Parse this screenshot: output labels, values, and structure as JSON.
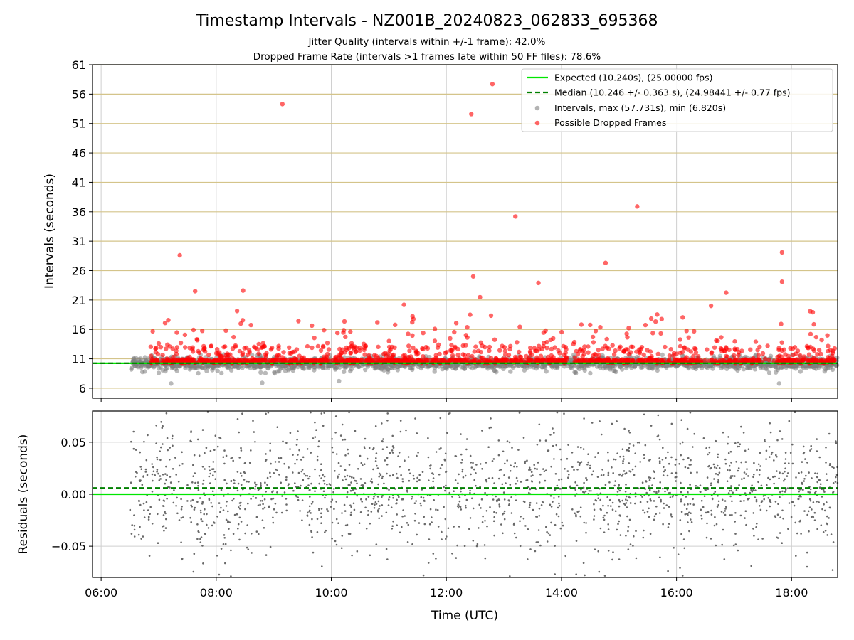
{
  "chart_data": [
    {
      "type": "scatter",
      "title": "Timestamp Intervals - NZ001B_20240823_062833_695368",
      "subtitle_1": "Jitter Quality (intervals within +/-1 frame): 42.0%",
      "subtitle_2": "Dropped Frame Rate (intervals >1 frames late within 50 FF files): 78.6%",
      "xlabel": "",
      "ylabel": "Intervals (seconds)",
      "x_ticks": [
        "06:00",
        "08:00",
        "10:00",
        "12:00",
        "14:00",
        "16:00",
        "18:00"
      ],
      "y_ticks": [
        6,
        11,
        16,
        21,
        26,
        31,
        36,
        41,
        46,
        51,
        56,
        61
      ],
      "xlim_hours": [
        5.85,
        18.8
      ],
      "ylim": [
        4.3,
        61
      ],
      "expected_interval": 10.24,
      "median_interval": 10.246,
      "legend_position": "top-right",
      "legend": [
        "Expected (10.240s), (25.00000 fps)",
        "Median (10.246 +/- 0.363 s), (24.98441 +/- 0.77 fps)",
        "Intervals, max (57.731s), min (6.820s)",
        "Possible Dropped Frames"
      ],
      "colors": {
        "expected": "#00e600",
        "median": "#008000",
        "intervals": "#808080",
        "dropped": "#ff0000",
        "gridline": "#d4c48a"
      },
      "notable_dropped_points": [
        {
          "time": "07:22",
          "value": 28.6
        },
        {
          "time": "09:09",
          "value": 54.3
        },
        {
          "time": "12:26",
          "value": 52.6
        },
        {
          "time": "12:48",
          "value": 57.7
        },
        {
          "time": "13:12",
          "value": 35.2
        },
        {
          "time": "15:19",
          "value": 36.9
        },
        {
          "time": "17:50",
          "value": 29.1
        },
        {
          "time": "17:50",
          "value": 24.1
        },
        {
          "time": "14:46",
          "value": 27.3
        },
        {
          "time": "12:28",
          "value": 25.0
        },
        {
          "time": "13:36",
          "value": 23.9
        },
        {
          "time": "08:28",
          "value": 22.6
        },
        {
          "time": "07:38",
          "value": 22.5
        },
        {
          "time": "16:36",
          "value": 20.0
        }
      ],
      "notable_interval_points": [
        {
          "time": "07:13",
          "value": 6.8
        },
        {
          "time": "08:48",
          "value": 6.9
        },
        {
          "time": "17:47",
          "value": 6.8
        },
        {
          "time": "10:08",
          "value": 7.2
        }
      ]
    },
    {
      "type": "scatter",
      "xlabel": "Time (UTC)",
      "ylabel": "Residuals (seconds)",
      "x_ticks": [
        "06:00",
        "08:00",
        "10:00",
        "12:00",
        "14:00",
        "16:00",
        "18:00"
      ],
      "y_ticks": [
        "0.05",
        "0.00",
        "−0.05"
      ],
      "y_tick_values": [
        0.05,
        0.0,
        -0.05
      ],
      "ylim": [
        -0.08,
        0.08
      ],
      "expected_residual": 0.0,
      "median_residual": 0.006,
      "colors": {
        "expected": "#00e600",
        "median": "#008000",
        "residuals": "#696969"
      }
    }
  ]
}
